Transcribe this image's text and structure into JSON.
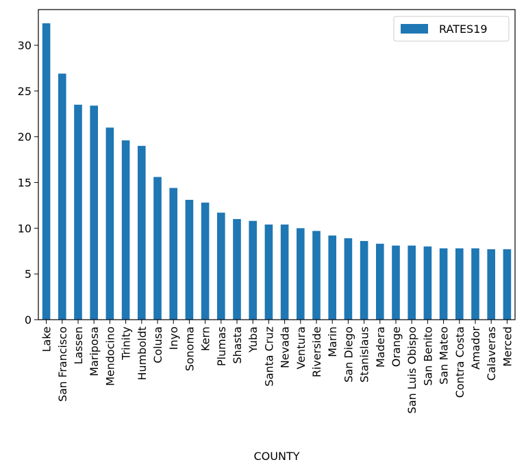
{
  "chart_data": {
    "type": "bar",
    "title": "",
    "xlabel": "COUNTY",
    "ylabel": "",
    "categories": [
      "Lake",
      "San Francisco",
      "Lassen",
      "Mariposa",
      "Mendocino",
      "Trinity",
      "Humboldt",
      "Colusa",
      "Inyo",
      "Sonoma",
      "Kern",
      "Plumas",
      "Shasta",
      "Yuba",
      "Santa Cruz",
      "Nevada",
      "Ventura",
      "Riverside",
      "Marin",
      "San Diego",
      "Stanislaus",
      "Madera",
      "Orange",
      "San Luis Obispo",
      "San Benito",
      "San Mateo",
      "Contra Costa",
      "Amador",
      "Calaveras",
      "Merced"
    ],
    "series": [
      {
        "name": "RATES19",
        "color": "#1f77b4",
        "values": [
          32.4,
          26.9,
          23.5,
          23.4,
          21.0,
          19.6,
          19.0,
          15.6,
          14.4,
          13.1,
          12.8,
          11.7,
          11.0,
          10.8,
          10.4,
          10.4,
          10.0,
          9.7,
          9.2,
          8.9,
          8.6,
          8.3,
          8.1,
          8.1,
          8.0,
          7.8,
          7.8,
          7.8,
          7.7,
          7.7
        ]
      }
    ],
    "ylim": [
      0,
      33.9
    ],
    "yticks": [
      "0",
      "5",
      "10",
      "15",
      "20",
      "25",
      "30"
    ],
    "grid": false,
    "legend_position": "top-right"
  }
}
